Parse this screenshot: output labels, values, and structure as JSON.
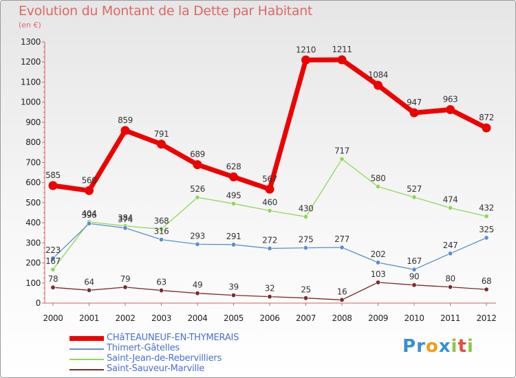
{
  "chart_data": {
    "type": "line",
    "title": "Evolution du Montant de la Dette par Habitant",
    "subtitle": "(en €)",
    "categories": [
      "2000",
      "2001",
      "2002",
      "2003",
      "2004",
      "2005",
      "2006",
      "2007",
      "2008",
      "2009",
      "2010",
      "2011",
      "2012"
    ],
    "y_ticks": [
      "0",
      "100",
      "200",
      "300",
      "400",
      "500",
      "600",
      "700",
      "800",
      "900",
      "1000",
      "1100",
      "1200",
      "1300"
    ],
    "ylim": [
      0,
      1300
    ],
    "grid": false,
    "legend_position": "bottom-left",
    "series": [
      {
        "name": "CHâTEAUNEUF-EN-THYMERAIS",
        "color": "#ee0000",
        "values": [
          585,
          560,
          859,
          791,
          689,
          628,
          567,
          1210,
          1211,
          1084,
          947,
          963,
          872
        ]
      },
      {
        "name": "Thimert-Gâtelles",
        "color": "#5b8ec9",
        "values": [
          223,
          396,
          374,
          316,
          293,
          291,
          272,
          275,
          277,
          202,
          167,
          247,
          325
        ]
      },
      {
        "name": "Saint-Jean-de-Rebervilliers",
        "color": "#8fd65c",
        "values": [
          167,
          404,
          384,
          368,
          526,
          495,
          460,
          430,
          717,
          580,
          527,
          474,
          432
        ]
      },
      {
        "name": "Saint-Sauveur-Marville",
        "color": "#7a2a2a",
        "values": [
          78,
          64,
          79,
          63,
          49,
          39,
          32,
          25,
          16,
          103,
          90,
          80,
          68
        ]
      }
    ]
  },
  "logo": {
    "letters": [
      "P",
      "r",
      "o",
      "x",
      "i",
      "t",
      "i"
    ],
    "colors": [
      "#3a8fd0",
      "#3a8fd0",
      "#f39c12",
      "#3a8fd0",
      "#8dc63f",
      "#e74c3c",
      "#8dc63f"
    ]
  }
}
